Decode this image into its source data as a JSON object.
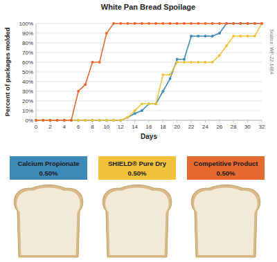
{
  "chart_data": {
    "type": "line",
    "title": "White Pan Bread Spoilage",
    "x_label": "Days",
    "y_label": "Percent of packages molded",
    "annotations": [
      "Source: WP-22-1464"
    ],
    "x": [
      0,
      1,
      2,
      3,
      4,
      5,
      6,
      7,
      8,
      9,
      10,
      11,
      12,
      13,
      14,
      15,
      16,
      17,
      18,
      19,
      20,
      21,
      22,
      23,
      24,
      25,
      26,
      27,
      28,
      29,
      30,
      31,
      32
    ],
    "series": [
      {
        "name": "Calcium Propionate",
        "color": "#3d8ab8",
        "values": [
          0,
          0,
          0,
          0,
          0,
          0,
          0,
          0,
          0,
          0,
          0,
          0,
          0,
          3,
          7,
          10,
          17,
          17,
          30,
          43,
          63,
          63,
          87,
          87,
          87,
          87,
          90,
          100,
          100,
          100,
          100,
          100,
          100
        ]
      },
      {
        "name": "SHIELD® Pure Dry",
        "color": "#f2c23a",
        "values": [
          0,
          0,
          0,
          0,
          0,
          0,
          0,
          0,
          0,
          0,
          0,
          0,
          0,
          3,
          10,
          17,
          17,
          17,
          47,
          47,
          60,
          60,
          60,
          60,
          60,
          60,
          67,
          77,
          87,
          87,
          87,
          87,
          100
        ]
      },
      {
        "name": "Competitive Product",
        "color": "#e8692e",
        "values": [
          0,
          0,
          0,
          0,
          0,
          0,
          30,
          37,
          60,
          60,
          90,
          100,
          100,
          100,
          100,
          100,
          100,
          100,
          100,
          100,
          100,
          100,
          100,
          100,
          100,
          100,
          100,
          100,
          100,
          100,
          100,
          100,
          100
        ]
      }
    ],
    "xlim": [
      0,
      32
    ],
    "xticks": [
      0,
      2,
      4,
      6,
      8,
      10,
      12,
      14,
      16,
      18,
      20,
      22,
      24,
      26,
      28,
      30,
      32
    ],
    "ylim": [
      0,
      100
    ],
    "yticks": [
      {
        "value": 0,
        "label": "0%"
      },
      {
        "value": 10,
        "label": "10%"
      },
      {
        "value": 20,
        "label": "20%"
      },
      {
        "value": 30,
        "label": "30%"
      },
      {
        "value": 40,
        "label": "40%"
      },
      {
        "value": 50,
        "label": "50%"
      },
      {
        "value": 60,
        "label": "60%"
      },
      {
        "value": 70,
        "label": "70%"
      },
      {
        "value": 80,
        "label": "80%"
      },
      {
        "value": 90,
        "label": "90%"
      },
      {
        "value": 100,
        "label": "100%"
      }
    ],
    "grid": true,
    "marker": "circle",
    "line_style": "solid"
  },
  "panels": [
    {
      "dose": "0.50%"
    },
    {
      "dose": "0.50%"
    },
    {
      "dose": "0.50%"
    }
  ]
}
